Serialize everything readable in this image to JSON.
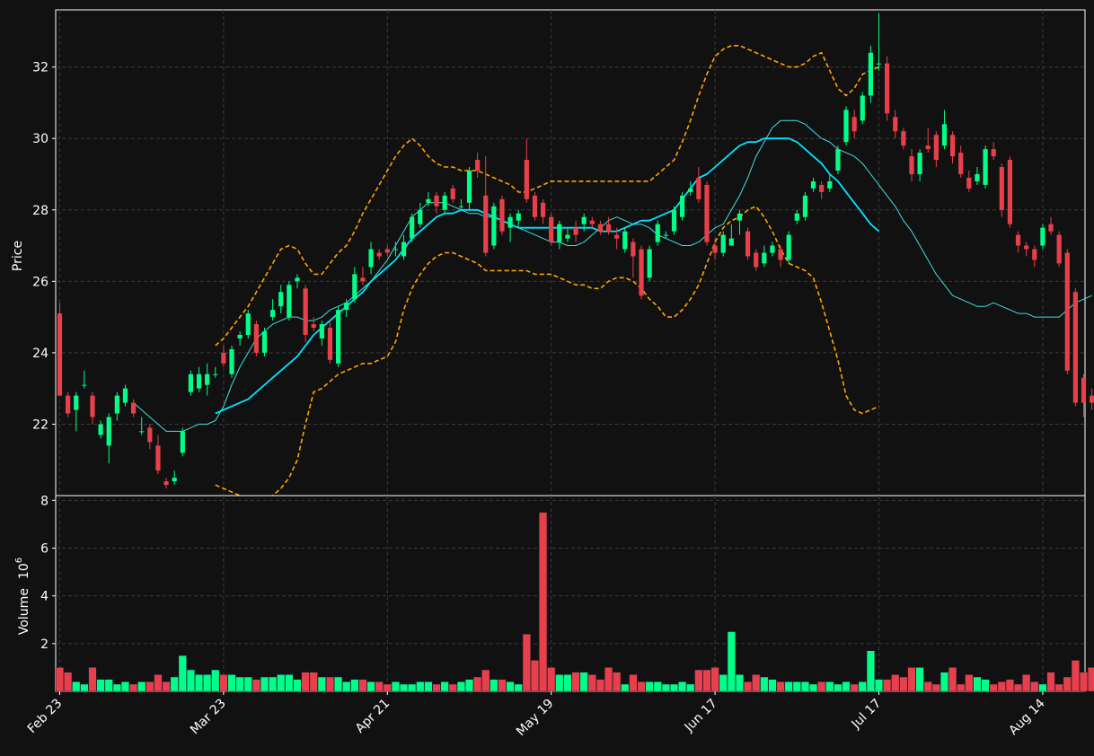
{
  "chart_data": {
    "type": "candlestick",
    "colors": {
      "background": "#111111",
      "up": "#00ff88",
      "down": "#e8404a",
      "ma_fast": "#40e0e0",
      "ma_slow": "#00e5ff",
      "bollinger": "#ffa500",
      "grid": "#3a3a3a",
      "axis": "#ffffff"
    },
    "x_tick_labels": [
      "Feb 23",
      "Mar 23",
      "Apr 21",
      "May 19",
      "Jun 17",
      "Jul 17",
      "Aug 14"
    ],
    "x_tick_index": [
      0,
      20,
      40,
      60,
      80,
      100,
      120
    ],
    "price_panel": {
      "ylabel": "Price",
      "yticks": [
        22,
        24,
        26,
        28,
        30,
        32
      ],
      "ylim": [
        20.0,
        33.6
      ],
      "grid": true
    },
    "volume_panel": {
      "ylabel": "Volume",
      "unit": "10",
      "unit_exp": "6",
      "yticks": [
        2,
        4,
        6,
        8
      ],
      "ylim": [
        0,
        8.2
      ],
      "grid": true
    },
    "candles": [
      [
        0,
        25.1,
        22.8,
        25.4,
        22.8,
        1.0
      ],
      [
        1,
        22.8,
        22.3,
        22.9,
        22.2,
        0.8
      ],
      [
        2,
        22.4,
        22.8,
        22.9,
        21.8,
        0.4
      ],
      [
        3,
        23.1,
        23.1,
        23.5,
        23.0,
        0.3
      ],
      [
        4,
        22.8,
        22.2,
        22.9,
        22.0,
        1.0
      ],
      [
        5,
        21.7,
        22.0,
        22.1,
        21.6,
        0.5
      ],
      [
        6,
        21.4,
        22.2,
        22.3,
        20.9,
        0.5
      ],
      [
        7,
        22.3,
        22.8,
        22.9,
        22.1,
        0.3
      ],
      [
        8,
        22.6,
        23.0,
        23.1,
        22.5,
        0.4
      ],
      [
        9,
        22.6,
        22.3,
        22.7,
        22.2,
        0.3
      ],
      [
        10,
        21.8,
        21.8,
        22.2,
        21.7,
        0.4
      ],
      [
        11,
        21.9,
        21.5,
        22.0,
        21.3,
        0.4
      ],
      [
        12,
        21.4,
        20.7,
        21.7,
        20.6,
        0.7
      ],
      [
        13,
        20.4,
        20.3,
        20.5,
        20.2,
        0.4
      ],
      [
        14,
        20.4,
        20.5,
        20.7,
        20.3,
        0.6
      ],
      [
        15,
        21.2,
        21.8,
        21.9,
        21.1,
        1.5
      ],
      [
        16,
        22.9,
        23.4,
        23.5,
        22.8,
        0.9
      ],
      [
        17,
        23.0,
        23.4,
        23.6,
        22.9,
        0.7
      ],
      [
        18,
        23.1,
        23.4,
        23.7,
        22.8,
        0.7
      ],
      [
        19,
        23.4,
        23.4,
        23.6,
        23.3,
        0.9
      ],
      [
        20,
        24.0,
        23.7,
        24.2,
        23.6,
        0.7
      ],
      [
        21,
        23.4,
        24.1,
        24.2,
        23.3,
        0.7
      ],
      [
        22,
        24.4,
        24.5,
        24.6,
        24.2,
        0.6
      ],
      [
        23,
        24.5,
        25.1,
        25.2,
        24.4,
        0.6
      ],
      [
        24,
        24.8,
        24.0,
        24.9,
        23.9,
        0.5
      ],
      [
        25,
        24.0,
        24.6,
        24.7,
        23.9,
        0.6
      ],
      [
        26,
        25.0,
        25.2,
        25.5,
        24.9,
        0.6
      ],
      [
        27,
        25.3,
        25.7,
        25.9,
        25.1,
        0.7
      ],
      [
        28,
        25.0,
        25.9,
        26.0,
        24.9,
        0.7
      ],
      [
        29,
        26.0,
        26.1,
        26.2,
        25.8,
        0.5
      ],
      [
        30,
        25.8,
        24.5,
        25.9,
        24.3,
        0.8
      ],
      [
        31,
        24.8,
        24.7,
        25.0,
        24.6,
        0.8
      ],
      [
        32,
        24.4,
        24.8,
        24.9,
        24.2,
        0.6
      ],
      [
        33,
        24.7,
        23.8,
        24.9,
        23.7,
        0.6
      ],
      [
        34,
        23.7,
        25.2,
        25.3,
        23.6,
        0.6
      ],
      [
        35,
        25.2,
        25.4,
        25.5,
        25.0,
        0.4
      ],
      [
        36,
        25.5,
        26.2,
        26.4,
        25.4,
        0.5
      ],
      [
        37,
        26.1,
        26.0,
        26.4,
        25.9,
        0.5
      ],
      [
        38,
        26.4,
        26.9,
        27.1,
        26.2,
        0.4
      ],
      [
        39,
        26.8,
        26.7,
        26.9,
        26.6,
        0.4
      ],
      [
        40,
        26.9,
        26.8,
        27.0,
        26.7,
        0.3
      ],
      [
        41,
        26.9,
        26.9,
        27.1,
        26.7,
        0.4
      ],
      [
        42,
        26.7,
        27.1,
        27.3,
        26.6,
        0.3
      ],
      [
        43,
        27.2,
        27.8,
        27.9,
        27.1,
        0.3
      ],
      [
        44,
        27.6,
        28.0,
        28.2,
        27.5,
        0.4
      ],
      [
        45,
        28.2,
        28.3,
        28.5,
        28.1,
        0.4
      ],
      [
        46,
        28.4,
        28.1,
        28.5,
        27.9,
        0.3
      ],
      [
        47,
        28.0,
        28.4,
        28.5,
        27.9,
        0.4
      ],
      [
        48,
        28.6,
        28.3,
        28.7,
        28.2,
        0.3
      ],
      [
        49,
        28.1,
        28.1,
        28.3,
        28.0,
        0.4
      ],
      [
        50,
        28.2,
        29.1,
        29.2,
        28.0,
        0.5
      ],
      [
        51,
        29.4,
        29.1,
        29.6,
        28.9,
        0.6
      ],
      [
        52,
        28.4,
        26.8,
        29.5,
        26.7,
        0.9
      ],
      [
        53,
        27.0,
        28.1,
        28.2,
        26.9,
        0.5
      ],
      [
        54,
        28.3,
        27.4,
        28.4,
        27.3,
        0.5
      ],
      [
        55,
        27.5,
        27.8,
        27.9,
        27.1,
        0.4
      ],
      [
        56,
        27.7,
        27.9,
        28.0,
        27.5,
        0.3
      ],
      [
        57,
        29.4,
        28.3,
        30.0,
        28.2,
        2.4
      ],
      [
        58,
        28.4,
        27.8,
        28.5,
        27.7,
        1.3
      ],
      [
        59,
        28.2,
        27.8,
        28.3,
        27.6,
        7.5
      ],
      [
        60,
        27.8,
        27.1,
        27.9,
        27.0,
        1.0
      ],
      [
        61,
        27.1,
        27.6,
        27.7,
        26.9,
        0.7
      ],
      [
        62,
        27.2,
        27.3,
        27.5,
        27.1,
        0.7
      ],
      [
        63,
        27.5,
        27.3,
        27.7,
        27.1,
        0.8
      ],
      [
        64,
        27.6,
        27.8,
        27.9,
        27.4,
        0.8
      ],
      [
        65,
        27.7,
        27.6,
        27.8,
        27.5,
        0.7
      ],
      [
        66,
        27.6,
        27.4,
        27.7,
        27.3,
        0.5
      ],
      [
        67,
        27.6,
        27.4,
        27.8,
        27.3,
        1.0
      ],
      [
        68,
        27.3,
        27.2,
        27.5,
        26.9,
        0.8
      ],
      [
        69,
        26.9,
        27.4,
        27.5,
        26.8,
        0.3
      ],
      [
        70,
        27.1,
        26.7,
        27.2,
        26.1,
        0.7
      ],
      [
        71,
        26.9,
        25.6,
        27.0,
        25.5,
        0.4
      ],
      [
        72,
        26.1,
        26.9,
        27.0,
        26.0,
        0.4
      ],
      [
        73,
        27.1,
        27.6,
        27.7,
        27.0,
        0.4
      ],
      [
        74,
        27.3,
        27.3,
        27.4,
        27.2,
        0.3
      ],
      [
        75,
        27.4,
        28.0,
        28.1,
        27.3,
        0.3
      ],
      [
        76,
        27.8,
        28.4,
        28.5,
        27.7,
        0.4
      ],
      [
        77,
        28.5,
        28.6,
        28.8,
        28.4,
        0.3
      ],
      [
        78,
        28.9,
        28.3,
        29.2,
        28.2,
        0.9
      ],
      [
        79,
        28.7,
        27.1,
        28.8,
        27.0,
        0.9
      ],
      [
        80,
        27.0,
        26.8,
        27.2,
        26.6,
        1.0
      ],
      [
        81,
        26.8,
        27.3,
        27.4,
        26.7,
        0.7
      ],
      [
        82,
        27.0,
        27.2,
        27.6,
        27.0,
        2.5
      ],
      [
        83,
        27.7,
        27.9,
        28.0,
        27.3,
        0.7
      ],
      [
        84,
        27.4,
        26.7,
        27.5,
        26.6,
        0.4
      ],
      [
        85,
        26.8,
        26.4,
        26.9,
        26.3,
        0.7
      ],
      [
        86,
        26.5,
        26.8,
        27.0,
        26.4,
        0.6
      ],
      [
        87,
        26.8,
        27.0,
        27.1,
        26.7,
        0.5
      ],
      [
        88,
        26.9,
        26.6,
        27.0,
        26.4,
        0.4
      ],
      [
        89,
        26.6,
        27.3,
        27.4,
        26.5,
        0.4
      ],
      [
        90,
        27.7,
        27.9,
        28.0,
        27.6,
        0.4
      ],
      [
        91,
        27.8,
        28.4,
        28.5,
        27.7,
        0.4
      ],
      [
        92,
        28.6,
        28.8,
        28.9,
        28.5,
        0.3
      ],
      [
        93,
        28.7,
        28.5,
        28.8,
        28.3,
        0.4
      ],
      [
        94,
        28.6,
        28.8,
        29.0,
        28.5,
        0.4
      ],
      [
        95,
        29.1,
        29.7,
        29.8,
        29.0,
        0.3
      ],
      [
        96,
        29.9,
        30.8,
        30.9,
        29.8,
        0.4
      ],
      [
        97,
        30.6,
        30.2,
        30.8,
        30.0,
        0.3
      ],
      [
        98,
        30.5,
        31.2,
        31.3,
        30.4,
        0.4
      ],
      [
        99,
        31.2,
        32.4,
        32.6,
        31.0,
        1.7
      ],
      [
        100,
        32.1,
        32.1,
        33.5,
        31.9,
        0.5
      ],
      [
        101,
        32.1,
        30.7,
        32.3,
        30.5,
        0.5
      ],
      [
        102,
        30.6,
        30.2,
        30.8,
        30.0,
        0.7
      ],
      [
        103,
        30.2,
        29.8,
        30.3,
        29.7,
        0.6
      ],
      [
        104,
        29.5,
        29.0,
        29.7,
        28.8,
        1.0
      ],
      [
        105,
        29.0,
        29.6,
        29.7,
        28.8,
        1.0
      ],
      [
        106,
        29.8,
        29.7,
        30.3,
        29.6,
        0.4
      ],
      [
        107,
        30.1,
        29.4,
        30.2,
        29.2,
        0.3
      ],
      [
        108,
        29.8,
        30.4,
        30.8,
        29.7,
        0.8
      ],
      [
        109,
        30.1,
        29.5,
        30.2,
        29.3,
        1.0
      ],
      [
        110,
        29.6,
        29.0,
        29.8,
        28.9,
        0.3
      ],
      [
        111,
        28.9,
        28.6,
        29.1,
        28.5,
        0.7
      ],
      [
        112,
        28.8,
        29.0,
        29.2,
        28.7,
        0.6
      ],
      [
        113,
        28.7,
        29.7,
        29.8,
        28.6,
        0.5
      ],
      [
        114,
        29.7,
        29.5,
        29.9,
        29.4,
        0.3
      ],
      [
        115,
        29.2,
        28.0,
        29.3,
        27.8,
        0.4
      ],
      [
        116,
        29.4,
        27.6,
        29.5,
        27.5,
        0.5
      ],
      [
        117,
        27.3,
        27.0,
        27.4,
        26.8,
        0.3
      ],
      [
        118,
        27.0,
        26.9,
        27.1,
        26.7,
        0.7
      ],
      [
        119,
        26.9,
        26.6,
        27.0,
        26.4,
        0.4
      ],
      [
        120,
        27.0,
        27.5,
        27.6,
        26.9,
        0.3
      ],
      [
        121,
        27.6,
        27.4,
        27.8,
        27.3,
        0.8
      ],
      [
        122,
        27.3,
        26.5,
        27.4,
        26.4,
        0.3
      ],
      [
        123,
        26.8,
        23.5,
        26.9,
        23.4,
        0.6
      ],
      [
        124,
        25.7,
        22.6,
        25.8,
        22.5,
        1.3
      ],
      [
        125,
        23.3,
        22.6,
        23.4,
        22.2,
        0.8
      ],
      [
        126,
        22.8,
        22.6,
        23.0,
        22.4,
        1.0
      ]
    ],
    "bollinger": {
      "start_index": 19,
      "upper": [
        24.2,
        24.4,
        24.7,
        25.0,
        25.3,
        25.7,
        26.1,
        26.5,
        26.9,
        27.0,
        26.9,
        26.5,
        26.2,
        26.2,
        26.5,
        26.8,
        27.0,
        27.4,
        27.9,
        28.3,
        28.7,
        29.1,
        29.5,
        29.8,
        30.0,
        29.8,
        29.5,
        29.3,
        29.2,
        29.2,
        29.1,
        29.1,
        29.1,
        29.0,
        28.9,
        28.8,
        28.7,
        28.5,
        28.5,
        28.6,
        28.7,
        28.8,
        28.8,
        28.8,
        28.8,
        28.8,
        28.8,
        28.8,
        28.8,
        28.8,
        28.8,
        28.8,
        28.8,
        28.8,
        29.0,
        29.2,
        29.4,
        29.9,
        30.5,
        31.2,
        31.8,
        32.3,
        32.5,
        32.6,
        32.6,
        32.5,
        32.4,
        32.3,
        32.2,
        32.1,
        32.0,
        32.0,
        32.1,
        32.3,
        32.4,
        31.9,
        31.4,
        31.2,
        31.4,
        31.8,
        31.9,
        32.0
      ],
      "lower": [
        20.3,
        20.2,
        20.1,
        20.0,
        19.9,
        19.9,
        19.9,
        20.0,
        20.2,
        20.5,
        21.0,
        22.0,
        22.9,
        23.0,
        23.2,
        23.4,
        23.5,
        23.6,
        23.7,
        23.7,
        23.8,
        23.9,
        24.3,
        25.2,
        25.8,
        26.2,
        26.5,
        26.7,
        26.8,
        26.8,
        26.7,
        26.6,
        26.5,
        26.3,
        26.3,
        26.3,
        26.3,
        26.3,
        26.3,
        26.2,
        26.2,
        26.2,
        26.1,
        26.0,
        25.9,
        25.9,
        25.8,
        25.8,
        26.0,
        26.1,
        26.1,
        26.0,
        25.8,
        25.5,
        25.3,
        25.0,
        25.0,
        25.2,
        25.5,
        25.9,
        26.5,
        27.1,
        27.5,
        27.7,
        27.8,
        28.0,
        28.1,
        27.8,
        27.4,
        26.9,
        26.5,
        26.4,
        26.3,
        26.1,
        25.4,
        24.6,
        23.8,
        22.8,
        22.4,
        22.3,
        22.4,
        22.5
      ]
    },
    "ma_fast": {
      "start_index": 9,
      "values": [
        22.6,
        22.4,
        22.2,
        22.0,
        21.8,
        21.8,
        21.8,
        21.9,
        22.0,
        22.0,
        22.1,
        22.5,
        23.1,
        23.6,
        24.0,
        24.4,
        24.6,
        24.8,
        24.9,
        25.0,
        25.0,
        24.9,
        24.9,
        25.0,
        25.2,
        25.3,
        25.4,
        25.6,
        25.8,
        26.0,
        26.3,
        26.6,
        27.0,
        27.4,
        27.8,
        28.0,
        28.2,
        28.2,
        28.2,
        28.1,
        28.0,
        27.9,
        27.9,
        27.8,
        27.8,
        27.7,
        27.6,
        27.5,
        27.4,
        27.3,
        27.2,
        27.1,
        27.1,
        27.0,
        27.0,
        27.1,
        27.3,
        27.5,
        27.7,
        27.8,
        27.7,
        27.6,
        27.6,
        27.5,
        27.3,
        27.2,
        27.1,
        27.0,
        27.0,
        27.1,
        27.3,
        27.5,
        27.6,
        28.0,
        28.4,
        28.9,
        29.5,
        29.9,
        30.3,
        30.5,
        30.5,
        30.5,
        30.4,
        30.2,
        30.0,
        29.9,
        29.7,
        29.6,
        29.5,
        29.3,
        29.0,
        28.7,
        28.4,
        28.1,
        27.7,
        27.4,
        27.0,
        26.6,
        26.2,
        25.9,
        25.6,
        25.5,
        25.4,
        25.3,
        25.3,
        25.4,
        25.3,
        25.2,
        25.1,
        25.1,
        25.0,
        25.0,
        25.0,
        25.0,
        25.2,
        25.4,
        25.5,
        25.6
      ]
    },
    "ma_slow": {
      "start_index": 19,
      "values": [
        22.3,
        22.4,
        22.5,
        22.6,
        22.7,
        22.9,
        23.1,
        23.3,
        23.5,
        23.7,
        23.9,
        24.2,
        24.5,
        24.7,
        24.9,
        25.1,
        25.3,
        25.5,
        25.7,
        26.0,
        26.2,
        26.4,
        26.6,
        26.9,
        27.2,
        27.4,
        27.6,
        27.8,
        27.9,
        27.9,
        28.0,
        28.0,
        28.0,
        27.9,
        27.8,
        27.7,
        27.6,
        27.5,
        27.5,
        27.5,
        27.5,
        27.5,
        27.5,
        27.5,
        27.5,
        27.5,
        27.5,
        27.4,
        27.4,
        27.4,
        27.5,
        27.6,
        27.7,
        27.7,
        27.8,
        27.9,
        28.0,
        28.3,
        28.6,
        28.9,
        29.0,
        29.2,
        29.4,
        29.6,
        29.8,
        29.9,
        29.9,
        30.0,
        30.0,
        30.0,
        30.0,
        29.9,
        29.7,
        29.5,
        29.3,
        29.0,
        28.8,
        28.5,
        28.2,
        27.9,
        27.6,
        27.4
      ]
    }
  }
}
